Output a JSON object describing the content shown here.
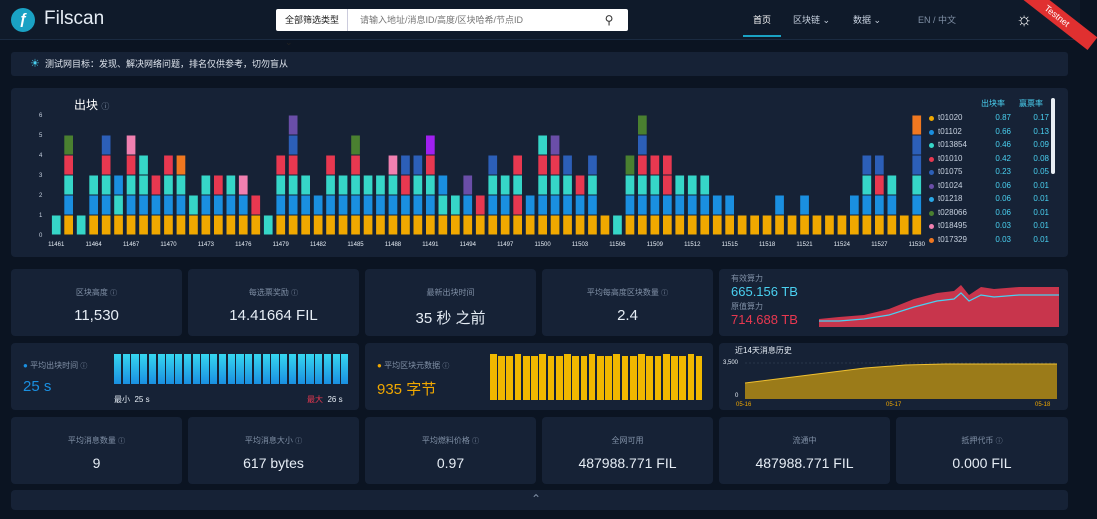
{
  "header": {
    "brand": "Filscan",
    "search_filter": "全部筛选类型 ⌄",
    "search_placeholder": "请输入地址/消息ID/高度/区块哈希/节点ID",
    "nav": [
      "首页",
      "区块链 ⌄",
      "数据 ⌄"
    ],
    "lang": "EN / 中文",
    "ribbon": "Testnet"
  },
  "notice": "测试网目标：发现、解决网络问题，排名仅供参考，切勿盲从",
  "chart_panel": {
    "title": "出块",
    "legend_header": [
      "出块率",
      "赢票率"
    ],
    "legend": [
      {
        "name": "t01020",
        "color": "#f0a800",
        "rate": "0.87",
        "win": "0.17"
      },
      {
        "name": "t01102",
        "color": "#1a8fe0",
        "rate": "0.66",
        "win": "0.13"
      },
      {
        "name": "t013854",
        "color": "#36d6c8",
        "rate": "0.46",
        "win": "0.09"
      },
      {
        "name": "t01010",
        "color": "#e83850",
        "rate": "0.42",
        "win": "0.08"
      },
      {
        "name": "t01075",
        "color": "#2c5fb8",
        "rate": "0.23",
        "win": "0.05"
      },
      {
        "name": "t01024",
        "color": "#6a4ea8",
        "rate": "0.06",
        "win": "0.01"
      },
      {
        "name": "t01218",
        "color": "#29a8e8",
        "rate": "0.06",
        "win": "0.01"
      },
      {
        "name": "t028066",
        "color": "#4a8030",
        "rate": "0.06",
        "win": "0.01"
      },
      {
        "name": "t018495",
        "color": "#f080b0",
        "rate": "0.03",
        "win": "0.01"
      },
      {
        "name": "t017329",
        "color": "#f07820",
        "rate": "0.03",
        "win": "0.01"
      }
    ]
  },
  "chart_data": {
    "type": "bar",
    "title": "出块",
    "stacked": true,
    "ylim": [
      0,
      6
    ],
    "yticks": [
      0,
      1,
      2,
      3,
      4,
      5,
      6
    ],
    "x_tick_labels": [
      "11461",
      "11464",
      "11467",
      "11470",
      "11473",
      "11476",
      "11479",
      "11482",
      "11485",
      "11488",
      "11491",
      "11494",
      "11497",
      "11500",
      "11503",
      "11506",
      "11509",
      "11512",
      "11515",
      "11518",
      "11521",
      "11524",
      "11527",
      "11530"
    ],
    "x_start": 11461,
    "x_end": 11530,
    "stacks": [
      [
        "#36d6c8"
      ],
      [
        "#f0a800",
        "#1a8fe0",
        "#36d6c8",
        "#e83850",
        "#4a8030"
      ],
      [
        "#36d6c8"
      ],
      [
        "#f0a800",
        "#1a8fe0",
        "#36d6c8"
      ],
      [
        "#f0a800",
        "#1a8fe0",
        "#36d6c8",
        "#e83850",
        "#2c5fb8"
      ],
      [
        "#f0a800",
        "#36d6c8",
        "#1a8fe0"
      ],
      [
        "#f0a800",
        "#1a8fe0",
        "#36d6c8",
        "#e83850",
        "#f080b0"
      ],
      [
        "#f0a800",
        "#1a8fe0",
        "#36d6c8",
        "#36d6c8"
      ],
      [
        "#f0a800",
        "#1a8fe0",
        "#e83850"
      ],
      [
        "#f0a800",
        "#1a8fe0",
        "#36d6c8",
        "#e83850"
      ],
      [
        "#f0a800",
        "#1a8fe0",
        "#36d6c8",
        "#f07820"
      ],
      [
        "#f0a800",
        "#36d6c8"
      ],
      [
        "#f0a800",
        "#1a8fe0",
        "#36d6c8"
      ],
      [
        "#f0a800",
        "#1a8fe0",
        "#e83850"
      ],
      [
        "#f0a800",
        "#1a8fe0",
        "#36d6c8"
      ],
      [
        "#f0a800",
        "#1a8fe0",
        "#f080b0"
      ],
      [
        "#f0a800",
        "#e83850"
      ],
      [
        "#36d6c8"
      ],
      [
        "#f0a800",
        "#1a8fe0",
        "#36d6c8",
        "#e83850"
      ],
      [
        "#f0a800",
        "#1a8fe0",
        "#36d6c8",
        "#e83850",
        "#2c5fb8",
        "#6a4ea8"
      ],
      [
        "#f0a800",
        "#1a8fe0",
        "#36d6c8"
      ],
      [
        "#f0a800",
        "#1a8fe0"
      ],
      [
        "#f0a800",
        "#1a8fe0",
        "#36d6c8",
        "#e83850"
      ],
      [
        "#f0a800",
        "#1a8fe0",
        "#36d6c8"
      ],
      [
        "#f0a800",
        "#1a8fe0",
        "#36d6c8",
        "#e83850",
        "#4a8030"
      ],
      [
        "#f0a800",
        "#1a8fe0",
        "#36d6c8"
      ],
      [
        "#f0a800",
        "#1a8fe0",
        "#36d6c8"
      ],
      [
        "#f0a800",
        "#1a8fe0",
        "#36d6c8",
        "#f080b0"
      ],
      [
        "#f0a800",
        "#1a8fe0",
        "#e83850",
        "#2c5fb8"
      ],
      [
        "#f0a800",
        "#1a8fe0",
        "#36d6c8",
        "#2c5fb8"
      ],
      [
        "#f0a800",
        "#1a8fe0",
        "#36d6c8",
        "#e83850",
        "#a020f0"
      ],
      [
        "#f0a800",
        "#36d6c8",
        "#1a8fe0"
      ],
      [
        "#f0a800",
        "#36d6c8"
      ],
      [
        "#f0a800",
        "#1a8fe0",
        "#6a4ea8"
      ],
      [
        "#f0a800",
        "#e83850"
      ],
      [
        "#f0a800",
        "#1a8fe0",
        "#36d6c8",
        "#2c5fb8"
      ],
      [
        "#f0a800",
        "#1a8fe0",
        "#36d6c8"
      ],
      [
        "#f0a800",
        "#e83850",
        "#36d6c8",
        "#e83850"
      ],
      [
        "#f0a800",
        "#1a8fe0"
      ],
      [
        "#f0a800",
        "#1a8fe0",
        "#36d6c8",
        "#e83850",
        "#36d6c8"
      ],
      [
        "#f0a800",
        "#1a8fe0",
        "#36d6c8",
        "#e83850",
        "#6a4ea8"
      ],
      [
        "#f0a800",
        "#1a8fe0",
        "#36d6c8",
        "#2c5fb8"
      ],
      [
        "#f0a800",
        "#1a8fe0",
        "#e83850"
      ],
      [
        "#f0a800",
        "#1a8fe0",
        "#36d6c8",
        "#2c5fb8"
      ],
      [
        "#f0a800"
      ],
      [
        "#36d6c8"
      ],
      [
        "#f0a800",
        "#1a8fe0",
        "#36d6c8",
        "#4a8030"
      ],
      [
        "#f0a800",
        "#1a8fe0",
        "#36d6c8",
        "#e83850",
        "#2c5fb8",
        "#4a8030"
      ],
      [
        "#f0a800",
        "#1a8fe0",
        "#36d6c8",
        "#e83850"
      ],
      [
        "#f0a800",
        "#1a8fe0",
        "#e83850",
        "#e83850"
      ],
      [
        "#f0a800",
        "#1a8fe0",
        "#36d6c8"
      ],
      [
        "#f0a800",
        "#1a8fe0",
        "#36d6c8"
      ],
      [
        "#f0a800",
        "#1a8fe0",
        "#36d6c8"
      ],
      [
        "#f0a800",
        "#1a8fe0"
      ],
      [
        "#f0a800",
        "#1a8fe0"
      ],
      [
        "#f0a800"
      ],
      [
        "#f0a800"
      ],
      [
        "#f0a800"
      ],
      [
        "#f0a800",
        "#1a8fe0"
      ],
      [
        "#f0a800"
      ],
      [
        "#f0a800",
        "#1a8fe0"
      ],
      [
        "#f0a800"
      ],
      [
        "#f0a800"
      ],
      [
        "#f0a800"
      ],
      [
        "#f0a800",
        "#1a8fe0"
      ],
      [
        "#f0a800",
        "#1a8fe0",
        "#36d6c8",
        "#2c5fb8"
      ],
      [
        "#f0a800",
        "#1a8fe0",
        "#e83850",
        "#2c5fb8"
      ],
      [
        "#f0a800",
        "#1a8fe0",
        "#36d6c8"
      ],
      [
        "#f0a800"
      ],
      [
        "#f0a800",
        "#1a8fe0",
        "#36d6c8",
        "#2c5fb8",
        "#2c5fb8",
        "#f07820"
      ]
    ]
  },
  "stats_row1": [
    {
      "label": "区块高度",
      "value": "11,530"
    },
    {
      "label": "每选票奖励",
      "value": "14.41664 FIL"
    },
    {
      "label": "最新出块时间",
      "value": "35 秒 之前"
    },
    {
      "label": "平均每高度区块数量",
      "value": "2.4"
    }
  ],
  "power": {
    "effective_label": "有效算力",
    "effective_value": "665.156 TB",
    "raw_label": "原值算力",
    "raw_value": "714.688 TB",
    "effective_color": "#4ad0f0",
    "raw_color": "#e83850"
  },
  "avg_block_time": {
    "label": "平均出块时间",
    "value": "25 s",
    "min_label": "最小",
    "min_value": "25 s",
    "max_label": "最大",
    "max_value": "26 s",
    "bars": 27
  },
  "avg_block_size": {
    "label": "平均区块元数据",
    "value": "935 字节",
    "bars": 26
  },
  "msg_history": {
    "title": "近14天消息历史",
    "y_label": "3,500",
    "y_zero": "0",
    "x_labels": [
      "05-16",
      "05-17",
      "05-18"
    ]
  },
  "stats_row3": [
    {
      "label": "平均消息数量",
      "value": "9"
    },
    {
      "label": "平均消息大小",
      "value": "617 bytes"
    },
    {
      "label": "平均燃料价格",
      "value": "0.97"
    },
    {
      "label": "全网可用",
      "value": "487988.771 FIL"
    },
    {
      "label": "流通中",
      "value": "487988.771 FIL"
    },
    {
      "label": "抵押代币",
      "value": "0.000 FIL"
    }
  ]
}
